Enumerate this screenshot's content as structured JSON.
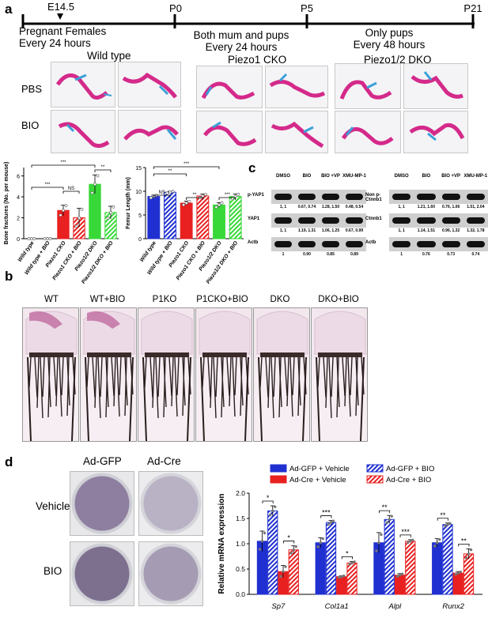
{
  "panel_a": {
    "letter": "a",
    "timeline": {
      "markers": [
        "E14.5",
        "P0",
        "P5",
        "P21"
      ],
      "phase1": [
        "Pregnant Females",
        "Every 24 hours"
      ],
      "phase2": [
        "Both mum and pups",
        "Every 24 hours"
      ],
      "phase3": [
        "Only pups",
        "Every 48 hours"
      ]
    },
    "groups": [
      "Wild type",
      "Piezo1 CKO",
      "Piezo1/2 DKO"
    ],
    "rows": [
      "PBS",
      "BIO"
    ]
  },
  "chart_fractures": {
    "type": "bar",
    "ylabel": "Bone fractures (No. per mouse)",
    "yticks": [
      "0",
      "2",
      "4",
      "6"
    ],
    "categories": [
      "Wild type",
      "Wild type + BIO",
      "Piezo1 CKO",
      "Piezo1 CKO + BIO",
      "Piezo1/2 DKO",
      "Piezo1/2 DKO + BIO"
    ],
    "values": [
      0,
      0,
      2.7,
      2.0,
      5.2,
      2.5
    ],
    "errors": [
      0,
      0,
      0.5,
      0.9,
      0.9,
      0.6
    ],
    "colors": [
      "#2030d0",
      "#2030d0",
      "#e82020",
      "#e82020",
      "#38d838",
      "#38d838"
    ],
    "hatched": [
      false,
      true,
      false,
      true,
      false,
      true
    ],
    "ylim": [
      0,
      6.8
    ],
    "sig": [
      {
        "from": 0,
        "to": 2,
        "label": "***"
      },
      {
        "from": 2,
        "to": 3,
        "label": "NS"
      },
      {
        "from": 0,
        "to": 4,
        "label": "***"
      },
      {
        "from": 4,
        "to": 5,
        "label": "**"
      }
    ]
  },
  "chart_femur": {
    "type": "bar",
    "ylabel": "Femur Length (mm)",
    "yticks": [
      "0",
      "5",
      "10",
      "15"
    ],
    "categories": [
      "Wild type",
      "Wild type + BIO",
      "Piezo1 CKO",
      "Piezo1 CKO + BIO",
      "Piezo1/2 DKO",
      "Piezo1/2 DKO + BIO"
    ],
    "values": [
      8.9,
      9.8,
      7.5,
      9.0,
      7.1,
      8.9
    ],
    "errors": [
      0.3,
      0.2,
      0.4,
      0.4,
      0.5,
      0.5
    ],
    "colors": [
      "#2030d0",
      "#2030d0",
      "#e82020",
      "#e82020",
      "#38d838",
      "#38d838"
    ],
    "hatched": [
      false,
      true,
      false,
      true,
      false,
      true
    ],
    "ylim": [
      0,
      15
    ],
    "sig": [
      {
        "from": 0,
        "to": 1,
        "label": "NS"
      },
      {
        "from": 0,
        "to": 2,
        "label": "**"
      },
      {
        "from": 2,
        "to": 3,
        "label": "**"
      },
      {
        "from": 4,
        "to": 5,
        "label": "***"
      },
      {
        "from": 0,
        "to": 4,
        "label": "***"
      }
    ]
  },
  "panel_c": {
    "letter": "c",
    "blot1": {
      "headers": [
        "DMSO",
        "BIO",
        "BIO +VP",
        "XMU-MP-1"
      ],
      "rows": [
        {
          "label": "p-YAP1",
          "nums": [
            "1, 1",
            "0.67, 0.74",
            "1.28, 1.50",
            "0.48, 0.54"
          ]
        },
        {
          "label": "YAP1",
          "nums": [
            "1, 1",
            "1.19, 1.31",
            "1.06, 1.25",
            "0.67, 0.99"
          ]
        },
        {
          "label": "Actb",
          "nums": [
            "1",
            "0.90",
            "0.85",
            "0.89"
          ]
        }
      ]
    },
    "blot2": {
      "headers": [
        "DMSO",
        "BIO",
        "BIO +VP",
        "XMU-MP-1"
      ],
      "rows": [
        {
          "label": "Non p-Ctnnb1",
          "nums": [
            "1, 1",
            "1.21, 1.60",
            "0.76, 1.06",
            "1.51, 2.04"
          ]
        },
        {
          "label": "Ctnnb1",
          "nums": [
            "1, 1",
            "1.14, 1.51",
            "0.96, 1.32",
            "1.32, 1.78"
          ]
        },
        {
          "label": "Actb",
          "nums": [
            "1",
            "0.76",
            "0.73",
            "0.74"
          ]
        }
      ]
    }
  },
  "panel_b": {
    "letter": "b",
    "labels": [
      "WT",
      "WT+BIO",
      "P1KO",
      "P1CKO+BIO",
      "DKO",
      "DKO+BIO"
    ]
  },
  "panel_d": {
    "letter": "d",
    "cols": [
      "Ad-GFP",
      "Ad-Cre"
    ],
    "rows": [
      "Vehicle",
      "BIO"
    ]
  },
  "chart_mrna": {
    "type": "bar",
    "ylabel": "Relative mRNA expression",
    "yticks": [
      "0.0",
      "0.5",
      "1.0",
      "1.5",
      "2.0"
    ],
    "categories": [
      "Sp7",
      "Col1a1",
      "Alpl",
      "Runx2"
    ],
    "legend": [
      "Ad-GFP + Vehicle",
      "Ad-GFP + BIO",
      "Ad-Cre + Vehicle",
      "Ad-Cre + BIO"
    ],
    "colors": [
      "#2030d0",
      "#2030d0",
      "#e82020",
      "#e82020"
    ],
    "hatched": [
      false,
      true,
      false,
      true
    ],
    "series": [
      {
        "name": "Ad-GFP + Vehicle",
        "values": [
          1.05,
          1.02,
          1.02,
          1.02
        ],
        "errors": [
          0.2,
          0.1,
          0.2,
          0.08
        ]
      },
      {
        "name": "Ad-GFP + BIO",
        "values": [
          1.65,
          1.42,
          1.48,
          1.38
        ],
        "errors": [
          0.1,
          0.04,
          0.08,
          0.03
        ]
      },
      {
        "name": "Ad-Cre + Vehicle",
        "values": [
          0.45,
          0.35,
          0.38,
          0.42
        ],
        "errors": [
          0.12,
          0.02,
          0.03,
          0.03
        ]
      },
      {
        "name": "Ad-Cre + BIO",
        "values": [
          0.88,
          0.62,
          1.05,
          0.8
        ],
        "errors": [
          0.08,
          0.03,
          0.03,
          0.1
        ]
      }
    ],
    "ylim": [
      0,
      2.0
    ],
    "sig": [
      {
        "cat": 0,
        "from": 0,
        "to": 1,
        "label": "*"
      },
      {
        "cat": 0,
        "from": 2,
        "to": 3,
        "label": "*"
      },
      {
        "cat": 1,
        "from": 0,
        "to": 1,
        "label": "***"
      },
      {
        "cat": 1,
        "from": 2,
        "to": 3,
        "label": "*"
      },
      {
        "cat": 2,
        "from": 0,
        "to": 1,
        "label": "**"
      },
      {
        "cat": 2,
        "from": 2,
        "to": 3,
        "label": "***"
      },
      {
        "cat": 3,
        "from": 0,
        "to": 1,
        "label": "**"
      },
      {
        "cat": 3,
        "from": 2,
        "to": 3,
        "label": "**"
      }
    ]
  }
}
